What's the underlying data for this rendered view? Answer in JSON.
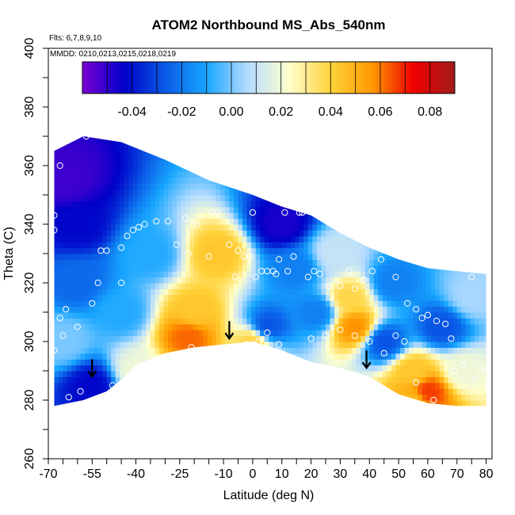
{
  "chart_data": {
    "type": "heatmap",
    "title": "ATOM2 Northbound MS_Abs_540nm",
    "note_flights": "Flts: 6,7,8,9,10",
    "note_dates": "MMDD: 0210,0213,0215,0218,0219",
    "xlabel": "Latitude (deg N)",
    "ylabel": "Theta (C)",
    "xlim": [
      -70,
      82
    ],
    "ylim": [
      260,
      400
    ],
    "x_ticks": [
      -70,
      -55,
      -40,
      -25,
      -10,
      0,
      10,
      20,
      30,
      40,
      50,
      60,
      70,
      80
    ],
    "y_ticks": [
      260,
      280,
      300,
      320,
      340,
      360,
      380,
      400
    ],
    "colorbar": {
      "range": [
        -0.06,
        0.09
      ],
      "ticks": [
        "-0.04",
        "-0.02",
        "0.00",
        "0.02",
        "0.04",
        "0.06",
        "0.08"
      ],
      "tick_values": [
        -0.04,
        -0.02,
        0.0,
        0.02,
        0.04,
        0.06,
        0.08
      ],
      "colors": [
        "#7b00d4",
        "#0000c8",
        "#0a5ae6",
        "#17a6ff",
        "#b5dcff",
        "#ffffcc",
        "#ffd23a",
        "#ff9a00",
        "#f00000",
        "#a01c1c"
      ]
    },
    "data_region_top": [
      [
        -68,
        365
      ],
      [
        -58,
        370
      ],
      [
        -45,
        368
      ],
      [
        -30,
        362
      ],
      [
        -15,
        355
      ],
      [
        0,
        350
      ],
      [
        10,
        346
      ],
      [
        20,
        343
      ],
      [
        30,
        337
      ],
      [
        40,
        332
      ],
      [
        50,
        328
      ],
      [
        60,
        325
      ],
      [
        70,
        324
      ],
      [
        80,
        323
      ]
    ],
    "data_region_bottom": [
      [
        -68,
        278
      ],
      [
        -58,
        280
      ],
      [
        -50,
        283
      ],
      [
        -45,
        287
      ],
      [
        -40,
        292
      ],
      [
        -30,
        296
      ],
      [
        -20,
        298
      ],
      [
        -10,
        299
      ],
      [
        0,
        300
      ],
      [
        10,
        297
      ],
      [
        20,
        293
      ],
      [
        30,
        291
      ],
      [
        40,
        288
      ],
      [
        50,
        282
      ],
      [
        60,
        279
      ],
      [
        70,
        278
      ],
      [
        80,
        278
      ]
    ],
    "anomalies": [
      {
        "lat": -64,
        "theta": 355,
        "value": -0.055
      },
      {
        "lat": -60,
        "theta": 340,
        "value": -0.045
      },
      {
        "lat": -55,
        "theta": 285,
        "value": -0.045
      },
      {
        "lat": -60,
        "theta": 320,
        "value": -0.025
      },
      {
        "lat": -45,
        "theta": 310,
        "value": -0.01
      },
      {
        "lat": -35,
        "theta": 330,
        "value": -0.01
      },
      {
        "lat": -22,
        "theta": 302,
        "value": 0.065
      },
      {
        "lat": -20,
        "theta": 310,
        "value": 0.045
      },
      {
        "lat": -12,
        "theta": 330,
        "value": 0.045
      },
      {
        "lat": 0,
        "theta": 300,
        "value": 0.04
      },
      {
        "lat": 5,
        "theta": 305,
        "value": -0.03
      },
      {
        "lat": 10,
        "theta": 340,
        "value": -0.05
      },
      {
        "lat": 15,
        "theta": 325,
        "value": -0.02
      },
      {
        "lat": 22,
        "theta": 310,
        "value": -0.02
      },
      {
        "lat": 35,
        "theta": 305,
        "value": 0.06
      },
      {
        "lat": 33,
        "theta": 315,
        "value": 0.04
      },
      {
        "lat": 45,
        "theta": 300,
        "value": -0.03
      },
      {
        "lat": 48,
        "theta": 320,
        "value": -0.02
      },
      {
        "lat": 55,
        "theta": 290,
        "value": 0.045
      },
      {
        "lat": 60,
        "theta": 283,
        "value": 0.07
      },
      {
        "lat": 55,
        "theta": 280,
        "value": 0.05
      },
      {
        "lat": 65,
        "theta": 305,
        "value": -0.03
      },
      {
        "lat": 72,
        "theta": 290,
        "value": 0.02
      },
      {
        "lat": -65,
        "theta": 300,
        "value": 0.0
      },
      {
        "lat": 28,
        "theta": 330,
        "value": 0.01
      },
      {
        "lat": 75,
        "theta": 315,
        "value": 0.005
      },
      {
        "lat": -40,
        "theta": 290,
        "value": 0.02
      }
    ],
    "sample_points": [
      [
        -68,
        343
      ],
      [
        -68,
        338
      ],
      [
        -66,
        308
      ],
      [
        -68,
        297
      ],
      [
        -65,
        302
      ],
      [
        -64,
        311
      ],
      [
        -63,
        281
      ],
      [
        -60,
        305
      ],
      [
        -59,
        283
      ],
      [
        -66,
        360
      ],
      [
        -57,
        370
      ],
      [
        -55,
        313
      ],
      [
        -53,
        320
      ],
      [
        -52,
        331
      ],
      [
        -50,
        331
      ],
      [
        -48,
        285
      ],
      [
        -45,
        320
      ],
      [
        -45,
        332
      ],
      [
        -43,
        336
      ],
      [
        -41,
        338
      ],
      [
        -39,
        339
      ],
      [
        -37,
        340
      ],
      [
        -33,
        341
      ],
      [
        -29,
        341
      ],
      [
        -23,
        342
      ],
      [
        -26,
        333
      ],
      [
        -22,
        330
      ],
      [
        -14,
        344
      ],
      [
        -12,
        344
      ],
      [
        -19,
        340
      ],
      [
        -21,
        298
      ],
      [
        -15,
        329
      ],
      [
        -8,
        333
      ],
      [
        -5,
        331
      ],
      [
        -6,
        322
      ],
      [
        -3,
        329
      ],
      [
        -1,
        329
      ],
      [
        0,
        344
      ],
      [
        1,
        322
      ],
      [
        3,
        324
      ],
      [
        5,
        324
      ],
      [
        7,
        324
      ],
      [
        8,
        323
      ],
      [
        9,
        328
      ],
      [
        11,
        344
      ],
      [
        12,
        324
      ],
      [
        14,
        329
      ],
      [
        16,
        344
      ],
      [
        17,
        344
      ],
      [
        19,
        322
      ],
      [
        21,
        324
      ],
      [
        23,
        323
      ],
      [
        26,
        319
      ],
      [
        30,
        319
      ],
      [
        33,
        324
      ],
      [
        35,
        318
      ],
      [
        38,
        321
      ],
      [
        41,
        324
      ],
      [
        44,
        328
      ],
      [
        46,
        334
      ],
      [
        49,
        322
      ],
      [
        53,
        313
      ],
      [
        56,
        311
      ],
      [
        58,
        308
      ],
      [
        60,
        309
      ],
      [
        63,
        307
      ],
      [
        66,
        306
      ],
      [
        68,
        301
      ],
      [
        69,
        290
      ],
      [
        72,
        292
      ],
      [
        75,
        322
      ],
      [
        76,
        287
      ],
      [
        78,
        291
      ],
      [
        80,
        290
      ],
      [
        62,
        280
      ],
      [
        56,
        286
      ],
      [
        52,
        300
      ],
      [
        49,
        302
      ],
      [
        45,
        296
      ],
      [
        40,
        300
      ],
      [
        35,
        302
      ],
      [
        30,
        304
      ],
      [
        25,
        302
      ],
      [
        20,
        301
      ],
      [
        13,
        294
      ],
      [
        9,
        299
      ],
      [
        5,
        303
      ],
      [
        2,
        300
      ],
      [
        -2,
        299
      ],
      [
        -10,
        296
      ]
    ],
    "arrows": [
      {
        "lat": -55,
        "theta": 288
      },
      {
        "lat": -8,
        "theta": 301
      },
      {
        "lat": 39,
        "theta": 291
      }
    ]
  }
}
